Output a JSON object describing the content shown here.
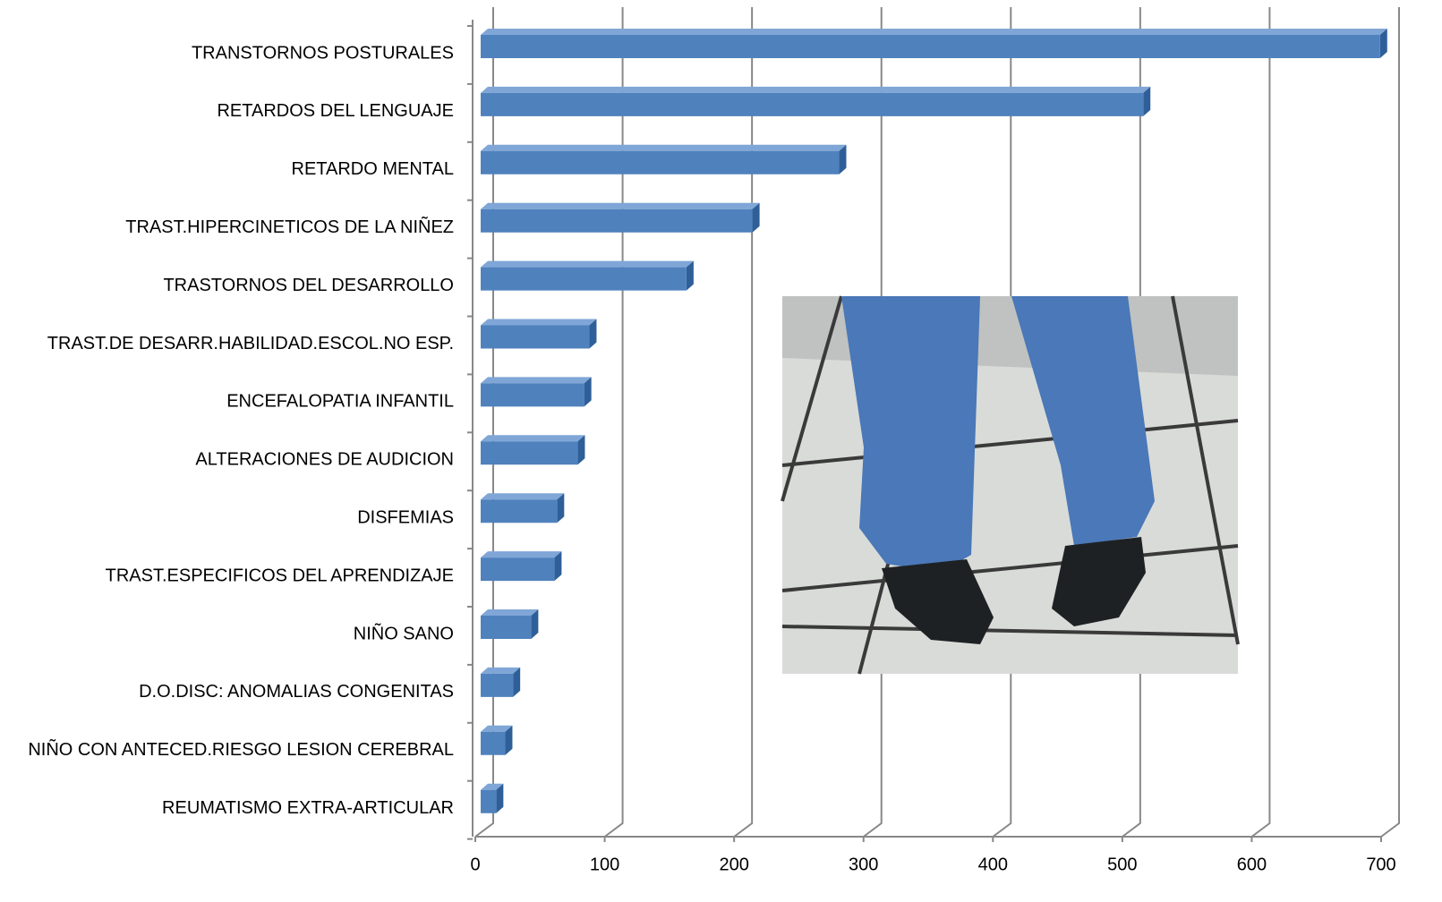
{
  "chart_data": {
    "type": "bar",
    "orientation": "horizontal",
    "three_d": true,
    "categories": [
      "TRANSTORNOS POSTURALES",
      "RETARDOS DEL LENGUAJE",
      "RETARDO MENTAL",
      "TRAST.HIPERCINETICOS DE LA NIÑEZ",
      "TRASTORNOS DEL  DESARROLLO",
      "TRAST.DE DESARR.HABILIDAD.ESCOL.NO ESP.",
      "ENCEFALOPATIA INFANTIL",
      "ALTERACIONES DE AUDICION",
      "DISFEMIAS",
      "TRAST.ESPECIFICOS DEL APRENDIZAJE",
      "NIÑO SANO",
      "D.O.DISC: ANOMALIAS CONGENITAS",
      "NIÑO CON ANTECED.RIESGO LESION CEREBRAL",
      "REUMATISMO EXTRA-ARTICULAR"
    ],
    "values": [
      695,
      512,
      277,
      210,
      159,
      84,
      80,
      75,
      59,
      57,
      39,
      25,
      19,
      12
    ],
    "color": "#4f81bd",
    "xlim": [
      0,
      700
    ],
    "xticks": [
      0,
      100,
      200,
      300,
      400,
      500,
      600,
      700
    ],
    "grid": true
  }
}
